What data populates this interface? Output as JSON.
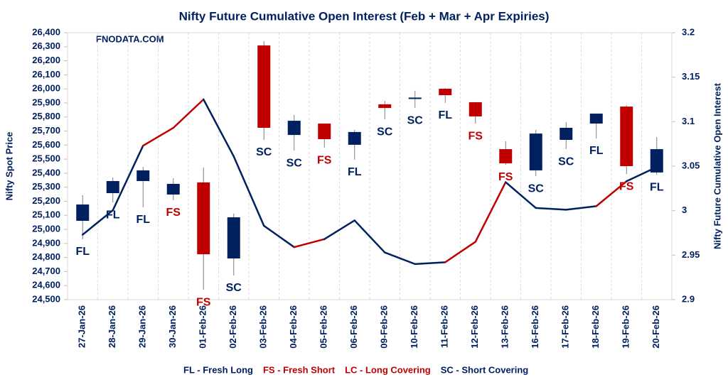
{
  "chart_data": {
    "type": "candlestick",
    "title": "Nifty Future Cumulative Open Interest (Feb + Mar + Apr Expiries)",
    "watermark": "FNODATA.COM",
    "y_label": "Nifty Spot Price",
    "y2_label": "Nifty Future Cumulative Open Interest",
    "categories": [
      "27-Jan-26",
      "28-Jan-26",
      "29-Jan-26",
      "30-Jan-26",
      "01-Feb-26",
      "02-Feb-26",
      "03-Feb-26",
      "04-Feb-26",
      "05-Feb-26",
      "06-Feb-26",
      "09-Feb-26",
      "10-Feb-26",
      "11-Feb-26",
      "12-Feb-26",
      "13-Feb-26",
      "16-Feb-26",
      "17-Feb-26",
      "18-Feb-26",
      "19-Feb-26",
      "20-Feb-26"
    ],
    "ylim": [
      24500,
      26400
    ],
    "yticks": [
      {
        "value": 24500,
        "label": "24,500"
      },
      {
        "value": 24600,
        "label": "24,600"
      },
      {
        "value": 24700,
        "label": "24,700"
      },
      {
        "value": 24800,
        "label": "24,800"
      },
      {
        "value": 24900,
        "label": "24,900"
      },
      {
        "value": 25000,
        "label": "25,000"
      },
      {
        "value": 25100,
        "label": "25,100"
      },
      {
        "value": 25200,
        "label": "25,200"
      },
      {
        "value": 25300,
        "label": "25,300"
      },
      {
        "value": 25400,
        "label": "25,400"
      },
      {
        "value": 25500,
        "label": "25,500"
      },
      {
        "value": 25600,
        "label": "25,600"
      },
      {
        "value": 25700,
        "label": "25,700"
      },
      {
        "value": 25800,
        "label": "25,800"
      },
      {
        "value": 25900,
        "label": "25,900"
      },
      {
        "value": 26000,
        "label": "26,000"
      },
      {
        "value": 26100,
        "label": "26,100"
      },
      {
        "value": 26200,
        "label": "26,200"
      },
      {
        "value": 26300,
        "label": "26,300"
      },
      {
        "value": 26400,
        "label": "26,400"
      }
    ],
    "y2lim": [
      2.9,
      3.2
    ],
    "y2ticks": [
      2.9,
      2.95,
      3,
      3.05,
      3.1,
      3.15,
      3.2
    ],
    "up_color": "#002060",
    "down_color": "#c00000",
    "open": [
      25061,
      25258,
      25344,
      25248,
      25334,
      24793,
      26309,
      25672,
      25753,
      25602,
      25890,
      25930,
      26001,
      25905,
      25571,
      25420,
      25637,
      25753,
      25874,
      25405
    ],
    "high": [
      25243,
      25369,
      25445,
      25364,
      25440,
      25112,
      26339,
      25814,
      25753,
      25708,
      25915,
      25986,
      26006,
      25905,
      25627,
      25708,
      25763,
      25824,
      25884,
      25657
    ],
    "low": [
      24930,
      25192,
      25157,
      25208,
      24570,
      24672,
      25637,
      25561,
      25581,
      25496,
      25783,
      25864,
      25900,
      25753,
      25460,
      25379,
      25571,
      25647,
      25394,
      25389
    ],
    "close": [
      25177,
      25344,
      25420,
      25324,
      24823,
      25086,
      25723,
      25773,
      25642,
      25693,
      25864,
      25938,
      25955,
      25804,
      25470,
      25682,
      25723,
      25824,
      25450,
      25571
    ],
    "annotations": [
      "FL",
      "FL",
      "FL",
      "FS",
      "FS",
      "SC",
      "SC",
      "SC",
      "FS",
      "FL",
      "SC",
      "SC",
      "FL",
      "FS",
      "FS",
      "SC",
      "SC",
      "FL",
      "FS",
      "FL"
    ],
    "series": [
      {
        "axis": "y2",
        "color": "#002060",
        "highlight_code": "FS",
        "highlight_color": "#c00000",
        "values": [
          2.973,
          3.0005,
          3.073,
          3.093,
          3.125,
          3.061,
          2.983,
          2.959,
          2.968,
          2.989,
          2.953,
          2.94,
          2.942,
          2.965,
          3.032,
          3.003,
          3.001,
          3.005,
          3.033,
          3.049
        ]
      }
    ],
    "legend": [
      {
        "code": "FL",
        "text": "FL - Fresh Long",
        "color": "#002060"
      },
      {
        "code": "FS",
        "text": "FS - Fresh Short",
        "color": "#c00000"
      },
      {
        "code": "LC",
        "text": "LC - Long Covering",
        "color": "#c00000"
      },
      {
        "code": "SC",
        "text": "SC - Short Covering",
        "color": "#002060"
      }
    ]
  }
}
